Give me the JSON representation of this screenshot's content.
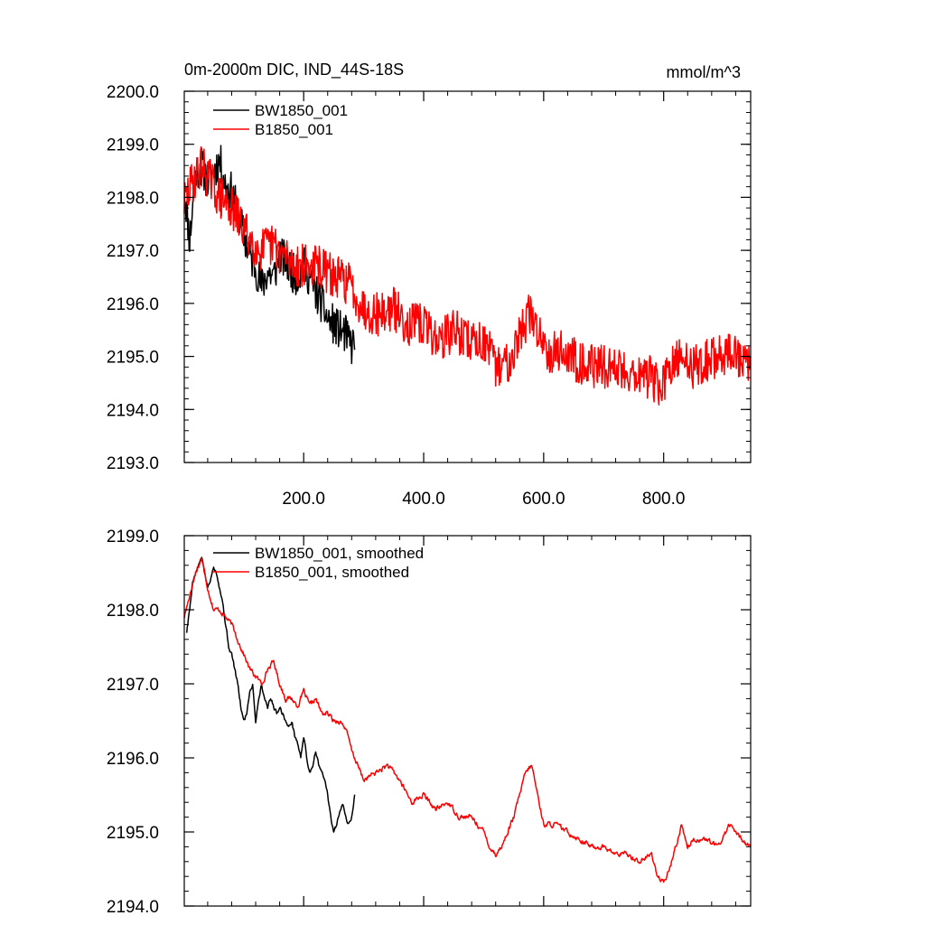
{
  "colors": {
    "series_0": "#000000",
    "series_1": "#ff0000",
    "frame": "#000000",
    "background": "#ffffff"
  },
  "chart_data": [
    {
      "type": "line",
      "title": "0m-2000m DIC, IND_44S-18S",
      "units": "mmol/m^3",
      "xlim": [
        1,
        945
      ],
      "ylim": [
        2193.0,
        2200.0
      ],
      "xticks": [
        200.0,
        400.0,
        600.0,
        800.0
      ],
      "xtick_labels": [
        "200.0",
        "400.0",
        "600.0",
        "800.0"
      ],
      "yticks": [
        2193.0,
        2194.0,
        2195.0,
        2196.0,
        2197.0,
        2198.0,
        2199.0,
        2200.0
      ],
      "ytick_labels": [
        "2193.0",
        "2194.0",
        "2195.0",
        "2196.0",
        "2197.0",
        "2198.0",
        "2199.0",
        "2200.0"
      ],
      "legend_position": "top-left",
      "series": [
        {
          "name": "BW1850_001",
          "x": [
            1,
            10,
            20,
            30,
            40,
            50,
            60,
            70,
            80,
            90,
            100,
            110,
            120,
            130,
            140,
            150,
            160,
            170,
            180,
            190,
            200,
            210,
            220,
            230,
            240,
            250,
            260,
            270,
            280,
            285
          ],
          "y": [
            2198.2,
            2197.2,
            2198.5,
            2198.6,
            2198.3,
            2198.5,
            2198.7,
            2198.2,
            2198.1,
            2197.7,
            2197.3,
            2196.9,
            2196.7,
            2196.3,
            2196.6,
            2196.5,
            2196.9,
            2196.8,
            2196.6,
            2196.5,
            2196.7,
            2196.5,
            2196.2,
            2196.0,
            2195.7,
            2195.6,
            2195.5,
            2195.4,
            2195.2,
            2195.3
          ],
          "noise": 0.38,
          "seed": 11
        },
        {
          "name": "B1850_001",
          "x": [
            1,
            15,
            30,
            45,
            60,
            80,
            100,
            125,
            150,
            175,
            200,
            225,
            250,
            275,
            300,
            325,
            350,
            375,
            400,
            425,
            450,
            475,
            500,
            520,
            540,
            560,
            575,
            590,
            610,
            630,
            660,
            690,
            720,
            750,
            780,
            795,
            810,
            830,
            850,
            870,
            890,
            910,
            930,
            945
          ],
          "y": [
            2197.9,
            2198.3,
            2198.6,
            2198.3,
            2198.0,
            2197.8,
            2197.4,
            2197.0,
            2197.1,
            2196.8,
            2196.7,
            2196.7,
            2196.5,
            2196.4,
            2195.9,
            2195.8,
            2195.9,
            2195.6,
            2195.6,
            2195.3,
            2195.5,
            2195.3,
            2195.3,
            2194.8,
            2194.9,
            2195.4,
            2195.8,
            2195.5,
            2195.1,
            2195.1,
            2194.9,
            2194.8,
            2194.8,
            2194.7,
            2194.6,
            2194.4,
            2194.7,
            2195.0,
            2194.8,
            2194.9,
            2195.0,
            2195.1,
            2194.9,
            2194.8
          ],
          "noise": 0.42,
          "seed": 29
        }
      ]
    },
    {
      "type": "line",
      "xlim": [
        1,
        945
      ],
      "ylim": [
        2194.0,
        2199.0
      ],
      "xticks": [
        200.0,
        400.0,
        600.0,
        800.0
      ],
      "yticks": [
        2194.0,
        2195.0,
        2196.0,
        2197.0,
        2198.0,
        2199.0
      ],
      "ytick_labels": [
        "2194.0",
        "2195.0",
        "2196.0",
        "2197.0",
        "2198.0",
        "2199.0"
      ],
      "legend_position": "top-left",
      "series": [
        {
          "name": "BW1850_001, smoothed",
          "x": [
            5,
            10,
            15,
            20,
            25,
            30,
            35,
            40,
            45,
            50,
            55,
            60,
            65,
            70,
            75,
            80,
            85,
            90,
            95,
            100,
            105,
            110,
            115,
            120,
            125,
            130,
            135,
            140,
            145,
            150,
            155,
            160,
            165,
            170,
            175,
            180,
            185,
            190,
            195,
            200,
            205,
            210,
            215,
            220,
            225,
            230,
            235,
            240,
            245,
            250,
            255,
            260,
            265,
            270,
            275,
            280,
            285
          ],
          "y": [
            2197.7,
            2198.0,
            2198.4,
            2198.5,
            2198.6,
            2198.7,
            2198.5,
            2198.3,
            2198.4,
            2198.6,
            2198.5,
            2198.3,
            2198.1,
            2197.8,
            2197.5,
            2197.4,
            2197.2,
            2197.0,
            2196.7,
            2196.5,
            2196.6,
            2196.9,
            2197.0,
            2196.5,
            2196.8,
            2197.0,
            2196.8,
            2196.7,
            2196.8,
            2196.7,
            2196.6,
            2196.7,
            2196.6,
            2196.5,
            2196.4,
            2196.5,
            2196.3,
            2196.2,
            2196.0,
            2196.3,
            2196.0,
            2195.8,
            2195.9,
            2196.1,
            2195.9,
            2195.8,
            2195.7,
            2195.5,
            2195.2,
            2195.0,
            2195.1,
            2195.3,
            2195.4,
            2195.2,
            2195.1,
            2195.2,
            2195.5
          ],
          "noise": 0.06,
          "seed": 5
        },
        {
          "name": "B1850_001, smoothed",
          "x": [
            1,
            10,
            20,
            30,
            40,
            50,
            60,
            70,
            80,
            90,
            100,
            110,
            120,
            130,
            140,
            150,
            160,
            170,
            180,
            190,
            200,
            210,
            220,
            230,
            240,
            250,
            260,
            270,
            280,
            290,
            300,
            320,
            340,
            360,
            380,
            400,
            420,
            440,
            460,
            480,
            500,
            510,
            520,
            530,
            540,
            550,
            560,
            570,
            580,
            590,
            600,
            620,
            640,
            660,
            680,
            700,
            720,
            740,
            760,
            780,
            790,
            800,
            810,
            820,
            830,
            840,
            850,
            870,
            890,
            910,
            930,
            945
          ],
          "y": [
            2197.9,
            2198.2,
            2198.5,
            2198.7,
            2198.3,
            2198.0,
            2198.0,
            2197.9,
            2197.8,
            2197.6,
            2197.4,
            2197.2,
            2197.1,
            2197.0,
            2197.2,
            2197.3,
            2197.0,
            2196.8,
            2196.8,
            2196.7,
            2196.9,
            2196.7,
            2196.8,
            2196.6,
            2196.6,
            2196.5,
            2196.5,
            2196.4,
            2196.1,
            2195.9,
            2195.7,
            2195.8,
            2195.9,
            2195.7,
            2195.4,
            2195.5,
            2195.3,
            2195.4,
            2195.2,
            2195.2,
            2195.0,
            2194.8,
            2194.7,
            2194.8,
            2195.0,
            2195.2,
            2195.5,
            2195.8,
            2195.9,
            2195.5,
            2195.1,
            2195.1,
            2195.0,
            2194.9,
            2194.8,
            2194.8,
            2194.7,
            2194.7,
            2194.6,
            2194.7,
            2194.4,
            2194.3,
            2194.5,
            2194.8,
            2195.1,
            2194.8,
            2194.9,
            2194.9,
            2194.8,
            2195.1,
            2194.9,
            2194.8
          ],
          "noise": 0.07,
          "seed": 17
        }
      ]
    }
  ]
}
